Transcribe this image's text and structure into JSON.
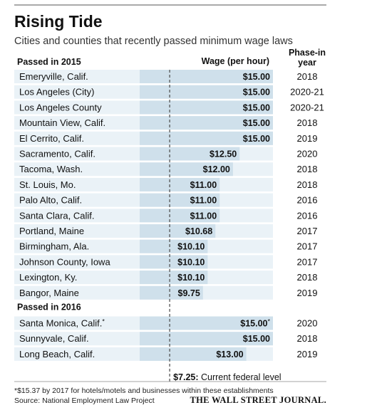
{
  "title": "Rising Tide",
  "subtitle": "Cities and counties that recently passed minimum wage laws",
  "headers": {
    "wage": "Wage (per hour)",
    "phase_in": "Phase-in",
    "year": "year"
  },
  "federal": {
    "value_label": "$7.25:",
    "text": "Current federal level",
    "value": 7.25
  },
  "footnote": "*$15.37 by 2017 for hotels/motels and businesses within these establishments",
  "source": "Source: National Employment Law Project",
  "brand": "THE WALL STREET JOURNAL.",
  "colors": {
    "bar": "#cfe0eb",
    "rule": "#555555",
    "text": "#111111"
  },
  "chart_data": {
    "type": "bar",
    "orientation": "horizontal",
    "title": "Rising Tide",
    "subtitle": "Cities and counties that recently passed minimum wage laws",
    "xlabel": "Wage (per hour)",
    "groups": [
      {
        "name": "Passed in 2015",
        "rows": [
          {
            "place": "Emeryville, Calif.",
            "value": 15.0,
            "label": "$15.00",
            "year": "2018"
          },
          {
            "place": "Los Angeles (City)",
            "value": 15.0,
            "label": "$15.00",
            "year": "2020-21"
          },
          {
            "place": "Los Angeles County",
            "value": 15.0,
            "label": "$15.00",
            "year": "2020-21"
          },
          {
            "place": "Mountain View, Calif.",
            "value": 15.0,
            "label": "$15.00",
            "year": "2018"
          },
          {
            "place": "El Cerrito, Calif.",
            "value": 15.0,
            "label": "$15.00",
            "year": "2019"
          },
          {
            "place": "Sacramento, Calif.",
            "value": 12.5,
            "label": "$12.50",
            "year": "2020"
          },
          {
            "place": "Tacoma, Wash.",
            "value": 12.0,
            "label": "$12.00",
            "year": "2018"
          },
          {
            "place": "St. Louis, Mo.",
            "value": 11.0,
            "label": "$11.00",
            "year": "2018"
          },
          {
            "place": "Palo Alto, Calif.",
            "value": 11.0,
            "label": "$11.00",
            "year": "2016"
          },
          {
            "place": "Santa Clara, Calif.",
            "value": 11.0,
            "label": "$11.00",
            "year": "2016"
          },
          {
            "place": "Portland, Maine",
            "value": 10.68,
            "label": "$10.68",
            "year": "2017"
          },
          {
            "place": "Birmingham, Ala.",
            "value": 10.1,
            "label": "$10.10",
            "year": "2017"
          },
          {
            "place": "Johnson County, Iowa",
            "value": 10.1,
            "label": "$10.10",
            "year": "2017"
          },
          {
            "place": "Lexington, Ky.",
            "value": 10.1,
            "label": "$10.10",
            "year": "2018"
          },
          {
            "place": "Bangor, Maine",
            "value": 9.75,
            "label": "$9.75",
            "year": "2019"
          }
        ]
      },
      {
        "name": "Passed in 2016",
        "rows": [
          {
            "place": "Santa Monica, Calif.",
            "place_mark": "*",
            "value": 15.0,
            "label": "$15.00",
            "label_mark": "*",
            "year": "2020"
          },
          {
            "place": "Sunnyvale, Calif.",
            "value": 15.0,
            "label": "$15.00",
            "year": "2018"
          },
          {
            "place": "Long Beach, Calif.",
            "value": 13.0,
            "label": "$13.00",
            "year": "2019"
          }
        ]
      }
    ],
    "reference_line": {
      "value": 7.25,
      "style": "dashed"
    }
  }
}
